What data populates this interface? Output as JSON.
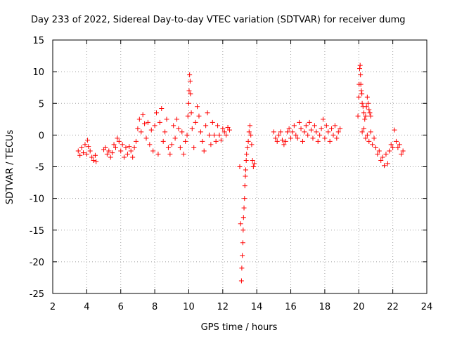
{
  "chart_data": {
    "type": "scatter",
    "title": "Day 233 of 2022, Sidereal Day-to-day VTEC variation (SDTVAR) for receiver dumg",
    "xlabel": "GPS time / hours",
    "ylabel": "SDTVAR / TECUs",
    "xlim": [
      2,
      24
    ],
    "ylim": [
      -25,
      15
    ],
    "xticks": [
      2,
      4,
      6,
      8,
      10,
      12,
      14,
      16,
      18,
      20,
      22,
      24
    ],
    "yticks": [
      -25,
      -20,
      -15,
      -10,
      -5,
      0,
      5,
      10,
      15
    ],
    "grid": true,
    "marker": "+",
    "color": "#ff0000",
    "series": [
      {
        "name": "SDTVAR",
        "x": [
          3.5,
          3.6,
          3.7,
          3.8,
          3.9,
          4.0,
          4.05,
          4.1,
          4.2,
          4.3,
          4.4,
          4.5,
          4.55,
          5.0,
          5.1,
          5.2,
          5.3,
          5.4,
          5.5,
          5.6,
          5.7,
          5.8,
          5.9,
          6.0,
          6.1,
          6.2,
          6.3,
          6.4,
          6.5,
          6.6,
          6.7,
          6.8,
          6.9,
          7.0,
          7.1,
          7.2,
          7.3,
          7.4,
          7.5,
          7.6,
          7.7,
          7.8,
          7.9,
          8.0,
          8.1,
          8.2,
          8.3,
          8.4,
          8.5,
          8.6,
          8.7,
          8.8,
          8.9,
          9.0,
          9.1,
          9.2,
          9.3,
          9.4,
          9.5,
          9.6,
          9.7,
          9.8,
          9.9,
          9.95,
          10.0,
          10.02,
          10.05,
          10.08,
          10.1,
          10.15,
          10.2,
          10.3,
          10.4,
          10.5,
          10.6,
          10.7,
          10.8,
          10.9,
          11.0,
          11.1,
          11.2,
          11.3,
          11.4,
          11.5,
          11.6,
          11.7,
          11.8,
          11.9,
          12.0,
          12.1,
          12.2,
          12.3,
          12.4,
          13.0,
          13.05,
          13.1,
          13.12,
          13.15,
          13.18,
          13.2,
          13.22,
          13.25,
          13.28,
          13.3,
          13.33,
          13.35,
          13.38,
          13.4,
          13.45,
          13.5,
          13.55,
          13.6,
          13.65,
          13.7,
          13.75,
          13.8,
          13.85,
          15.0,
          15.1,
          15.2,
          15.3,
          15.4,
          15.5,
          15.6,
          15.7,
          15.8,
          15.9,
          16.0,
          16.1,
          16.2,
          16.3,
          16.4,
          16.5,
          16.6,
          16.7,
          16.8,
          16.9,
          17.0,
          17.1,
          17.2,
          17.3,
          17.4,
          17.5,
          17.6,
          17.7,
          17.8,
          17.9,
          18.0,
          18.1,
          18.2,
          18.3,
          18.4,
          18.5,
          18.6,
          18.7,
          18.8,
          18.9,
          19.95,
          20.0,
          20.02,
          20.05,
          20.08,
          20.1,
          20.12,
          20.15,
          20.18,
          20.2,
          20.25,
          20.3,
          20.35,
          20.4,
          20.45,
          20.5,
          20.55,
          20.6,
          20.65,
          20.7,
          20.2,
          20.3,
          20.4,
          20.5,
          20.6,
          20.7,
          20.8,
          20.9,
          21.0,
          21.1,
          21.2,
          21.3,
          21.4,
          21.5,
          21.6,
          21.7,
          21.8,
          21.9,
          22.0,
          22.1,
          22.2,
          22.3,
          22.4,
          22.5,
          22.6
        ],
        "y": [
          -2.5,
          -3.2,
          -2.0,
          -2.8,
          -1.5,
          -3.0,
          -0.8,
          -1.8,
          -2.5,
          -3.5,
          -4.0,
          -3.2,
          -4.2,
          -2.3,
          -2.0,
          -3.0,
          -2.5,
          -3.5,
          -2.8,
          -1.5,
          -2.0,
          -0.5,
          -1.0,
          -2.5,
          -1.5,
          -3.5,
          -2.0,
          -3.0,
          -1.8,
          -2.5,
          -3.5,
          -2.0,
          -1.0,
          1.0,
          2.5,
          0.5,
          3.2,
          1.8,
          -0.5,
          2.0,
          -1.5,
          0.8,
          -2.5,
          1.5,
          3.5,
          -3.0,
          2.0,
          4.2,
          -1.0,
          0.5,
          2.5,
          -2.0,
          -3.0,
          -1.5,
          1.5,
          -0.5,
          2.5,
          1.0,
          -2.0,
          0.5,
          -3.0,
          -1.0,
          0.0,
          3.0,
          5.0,
          7.0,
          9.5,
          8.5,
          6.5,
          3.5,
          1.0,
          -2.0,
          2.0,
          4.5,
          3.0,
          0.5,
          -1.0,
          -2.5,
          1.5,
          3.5,
          0.0,
          -1.5,
          2.0,
          0.0,
          -1.0,
          1.5,
          0.0,
          -0.8,
          1.0,
          0.5,
          0.0,
          1.2,
          0.8,
          -5.0,
          -14.0,
          -23.0,
          -21.0,
          -19.0,
          -17.0,
          -15.0,
          -13.0,
          -11.5,
          -10.0,
          -8.0,
          -6.5,
          -5.5,
          -4.0,
          -3.0,
          -2.0,
          -1.0,
          0.5,
          1.5,
          0.0,
          -1.5,
          -4.0,
          -5.0,
          -4.5,
          0.5,
          -0.5,
          -1.0,
          0.0,
          0.5,
          -0.8,
          -1.5,
          -1.0,
          0.5,
          1.0,
          -0.5,
          0.5,
          1.5,
          0.0,
          -0.5,
          2.0,
          1.0,
          -1.0,
          0.5,
          1.5,
          0.0,
          2.0,
          0.8,
          -0.5,
          1.5,
          0.5,
          -1.0,
          0.0,
          1.0,
          2.5,
          -0.5,
          1.5,
          0.5,
          -1.0,
          1.0,
          0.0,
          1.5,
          -0.5,
          0.5,
          1.0,
          3.0,
          6.0,
          8.0,
          10.5,
          11.0,
          9.5,
          8.0,
          7.0,
          6.5,
          5.0,
          4.5,
          3.5,
          2.5,
          3.0,
          4.5,
          6.0,
          5.0,
          4.0,
          3.5,
          3.0,
          0.5,
          1.0,
          -0.5,
          0.0,
          -1.0,
          0.5,
          -1.5,
          -0.5,
          -2.0,
          -3.0,
          -2.5,
          -4.0,
          -3.5,
          -4.8,
          -3.0,
          -4.5,
          -2.5,
          -1.5,
          -2.0,
          0.8,
          -1.0,
          -2.0,
          -1.5,
          -3.0,
          -2.5
        ]
      }
    ]
  }
}
